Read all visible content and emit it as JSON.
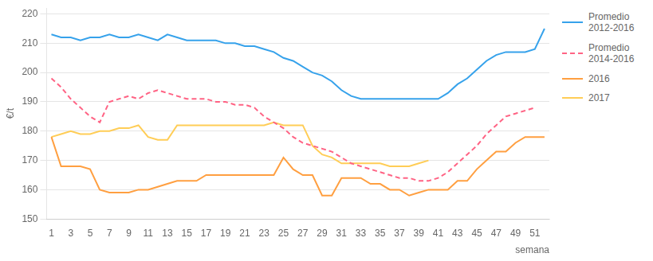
{
  "chart_data": {
    "type": "line",
    "xlabel": "semana",
    "ylabel": "€/t",
    "x": [
      1,
      2,
      3,
      4,
      5,
      6,
      7,
      8,
      9,
      10,
      11,
      12,
      13,
      14,
      15,
      16,
      17,
      18,
      19,
      20,
      21,
      22,
      23,
      24,
      25,
      26,
      27,
      28,
      29,
      30,
      31,
      32,
      33,
      34,
      35,
      36,
      37,
      38,
      39,
      40,
      41,
      42,
      43,
      44,
      45,
      46,
      47,
      48,
      49,
      50,
      51,
      52
    ],
    "xlim": [
      0.5,
      52.5
    ],
    "xticks": [
      1,
      3,
      5,
      7,
      9,
      11,
      13,
      15,
      17,
      19,
      21,
      23,
      25,
      27,
      29,
      31,
      33,
      35,
      37,
      39,
      41,
      43,
      45,
      47,
      49,
      51
    ],
    "ylim": [
      150,
      222
    ],
    "yticks": [
      150,
      160,
      170,
      180,
      190,
      200,
      210,
      220
    ],
    "grid": true,
    "legend": "upper right",
    "series": [
      {
        "name": "Promedio\n2012-2016",
        "line_style": "solid",
        "values": [
          213,
          212,
          212,
          211,
          212,
          212,
          213,
          212,
          212,
          213,
          212,
          211,
          213,
          212,
          211,
          211,
          211,
          211,
          210,
          210,
          209,
          209,
          208,
          207,
          205,
          204,
          202,
          200,
          199,
          197,
          194,
          192,
          191,
          191,
          191,
          191,
          191,
          191,
          191,
          191,
          191,
          193,
          196,
          198,
          201,
          204,
          206,
          207,
          207,
          207,
          208,
          215
        ]
      },
      {
        "name": "Promedio\n2014-2016",
        "line_style": "dashed",
        "values": [
          198,
          195,
          191,
          188,
          185,
          183,
          190,
          191,
          192,
          191,
          193,
          194,
          193,
          192,
          191,
          191,
          191,
          190,
          190,
          189,
          189,
          188,
          185,
          183,
          181,
          178,
          176,
          175,
          174,
          173,
          171,
          169,
          168,
          167,
          166,
          165,
          164,
          164,
          163,
          163,
          164,
          166,
          169,
          172,
          175,
          179,
          182,
          185,
          186,
          187,
          188,
          null
        ]
      },
      {
        "name": "2016",
        "line_style": "solid",
        "values": [
          178,
          168,
          168,
          168,
          167,
          160,
          159,
          159,
          159,
          160,
          160,
          161,
          162,
          163,
          163,
          163,
          165,
          165,
          165,
          165,
          165,
          165,
          165,
          165,
          171,
          167,
          165,
          165,
          158,
          158,
          164,
          164,
          164,
          162,
          162,
          160,
          160,
          158,
          159,
          160,
          160,
          160,
          163,
          163,
          167,
          170,
          173,
          173,
          176,
          178,
          178,
          178
        ]
      },
      {
        "name": "2017",
        "line_style": "solid",
        "values": [
          178,
          179,
          180,
          179,
          179,
          180,
          180,
          181,
          181,
          182,
          178,
          177,
          177,
          182,
          182,
          182,
          182,
          182,
          182,
          182,
          182,
          182,
          182,
          183,
          182,
          182,
          182,
          175,
          172,
          171,
          169,
          169,
          169,
          169,
          169,
          168,
          168,
          168,
          169,
          170,
          null,
          null,
          null,
          null,
          null,
          null,
          null,
          null,
          null,
          null,
          null,
          null
        ]
      }
    ]
  }
}
